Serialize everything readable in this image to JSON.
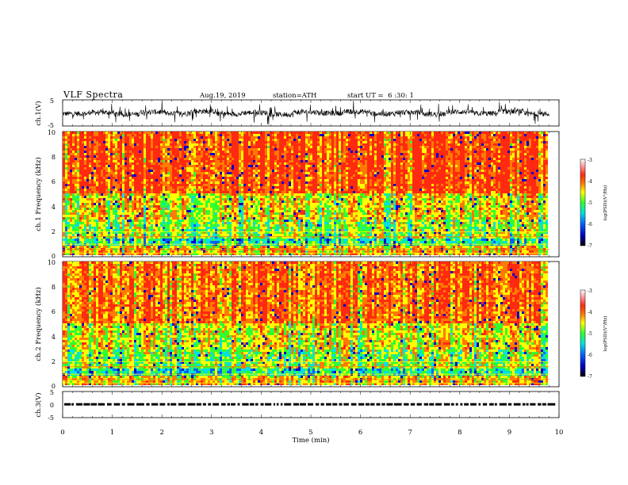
{
  "header": {
    "title": "VLF Spectra",
    "date": "Aug.19, 2019",
    "station": "station=ATH",
    "start": "start UT =  6 :30: 1"
  },
  "colors": {
    "background": "#ffffff",
    "axes": "#000000",
    "colormap": [
      "#ffffff",
      "#ff9aa0",
      "#ff2a10",
      "#ff7a00",
      "#ffff00",
      "#30ff30",
      "#00e0e0",
      "#0040ff",
      "#000000"
    ]
  },
  "chart_data": [
    {
      "type": "line",
      "panel": "ch1-waveform",
      "ylabel": "ch.1(V)",
      "ylim": [
        -5,
        5
      ],
      "yticks": [
        "5",
        "-5"
      ],
      "xlim": [
        0,
        10
      ],
      "series": [
        {
          "values": [
            -0.3,
            0.2,
            -0.5,
            0.4,
            -0.2,
            0.6,
            -0.4,
            0.1,
            -0.6,
            0.3,
            -0.1,
            0.5,
            -0.3,
            0.2,
            -0.5,
            0.4,
            -0.2,
            0.6,
            -0.4,
            0.1
          ]
        }
      ]
    },
    {
      "type": "heatmap",
      "panel": "ch1-spectrogram",
      "ylabel": "ch.1 Frequency (kHz)",
      "ylim": [
        0,
        10
      ],
      "yticks": [
        "10",
        "8",
        "6",
        "4",
        "2",
        "0"
      ],
      "xlim": [
        0,
        9.8
      ],
      "colorbar": {
        "label": "log(PSD)(V²/Hz)",
        "range": [
          -7,
          -3
        ],
        "ticks": [
          "-3",
          "-4",
          "-5",
          "-6",
          "-7"
        ]
      }
    },
    {
      "type": "heatmap",
      "panel": "ch2-spectrogram",
      "ylabel": "ch.2 Frequency (kHz)",
      "ylim": [
        0,
        10
      ],
      "yticks": [
        "10",
        "8",
        "6",
        "4",
        "2",
        "0"
      ],
      "xlim": [
        0,
        9.8
      ],
      "colorbar": {
        "label": "log(PSD)(V²/Hz)",
        "range": [
          -7,
          -3
        ],
        "ticks": [
          "-3",
          "-4",
          "-5",
          "-6",
          "-7"
        ]
      }
    },
    {
      "type": "line",
      "panel": "ch3-waveform",
      "ylabel": "ch.3(V)",
      "ylim": [
        -5,
        5
      ],
      "yticks": [
        "5",
        "0",
        "-5"
      ],
      "xlim": [
        0,
        10
      ],
      "series": [
        {
          "values": [
            0,
            0,
            0,
            0,
            0,
            0,
            0,
            0,
            0,
            0,
            0,
            0,
            0,
            0,
            0,
            0,
            0,
            0,
            0,
            0
          ]
        }
      ]
    }
  ],
  "xaxis": {
    "label": "Time (min)",
    "ticks": [
      "0",
      "1",
      "2",
      "3",
      "4",
      "5",
      "6",
      "7",
      "8",
      "9",
      "10"
    ]
  }
}
